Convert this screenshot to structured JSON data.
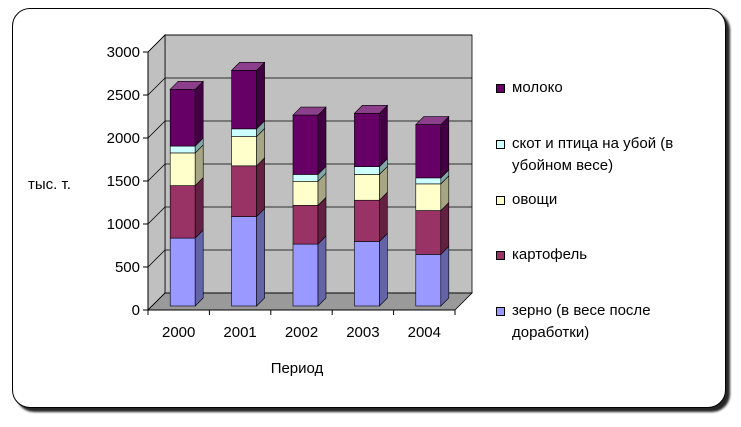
{
  "chart_data": {
    "type": "bar",
    "stacked": true,
    "three_d": true,
    "categories": [
      "2000",
      "2001",
      "2002",
      "2003",
      "2004"
    ],
    "series": [
      {
        "name": "зерно (в весе после доработки)",
        "values": [
          790,
          1040,
          720,
          750,
          600
        ],
        "color": "#9999ff"
      },
      {
        "name": "картофель",
        "values": [
          610,
          590,
          450,
          480,
          510
        ],
        "color": "#993366"
      },
      {
        "name": "овощи",
        "values": [
          380,
          340,
          280,
          300,
          310
        ],
        "color": "#ffffcc"
      },
      {
        "name": "скот и птица на убой (в убойном весе)",
        "values": [
          80,
          90,
          80,
          90,
          70
        ],
        "color": "#ccffff"
      },
      {
        "name": "молоко",
        "values": [
          660,
          680,
          690,
          620,
          620
        ],
        "color": "#660066"
      }
    ],
    "xlabel": "Период",
    "ylabel": "тыс. т.",
    "ylim": [
      0,
      3000
    ],
    "yticks": [
      0,
      500,
      1000,
      1500,
      2000,
      2500,
      3000
    ],
    "grid": true,
    "legend": "right"
  }
}
